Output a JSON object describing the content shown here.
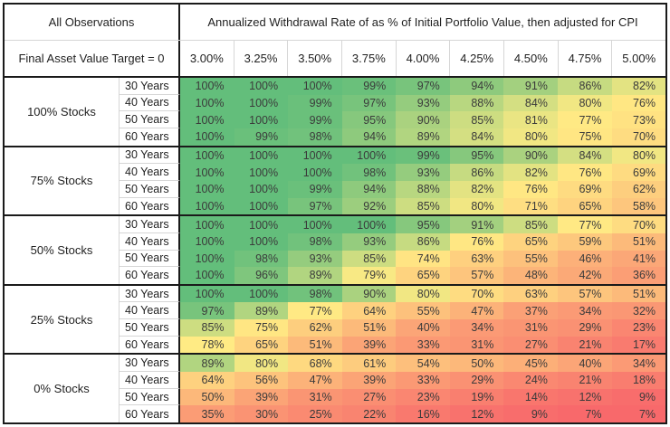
{
  "header": {
    "left_title": "All Observations",
    "left_subtitle": "Final Asset Value Target = 0"
  },
  "chart_data": {
    "type": "heatmap",
    "title": "Annualized Withdrawal Rate of as % of Initial Portfolio Value, then adjusted for CPI",
    "value_unit": "%",
    "columns": [
      "3.00%",
      "3.25%",
      "3.50%",
      "3.75%",
      "4.00%",
      "4.25%",
      "4.50%",
      "4.75%",
      "5.00%"
    ],
    "groups": [
      {
        "label": "100% Stocks",
        "rows": [
          {
            "label": "30 Years",
            "values": [
              100,
              100,
              100,
              99,
              97,
              94,
              91,
              86,
              82
            ]
          },
          {
            "label": "40 Years",
            "values": [
              100,
              100,
              99,
              97,
              93,
              88,
              84,
              80,
              76
            ]
          },
          {
            "label": "50 Years",
            "values": [
              100,
              100,
              99,
              95,
              90,
              85,
              81,
              77,
              73
            ]
          },
          {
            "label": "60 Years",
            "values": [
              100,
              99,
              98,
              94,
              89,
              84,
              80,
              75,
              70
            ]
          }
        ]
      },
      {
        "label": "75% Stocks",
        "rows": [
          {
            "label": "30 Years",
            "values": [
              100,
              100,
              100,
              100,
              99,
              95,
              90,
              84,
              80
            ]
          },
          {
            "label": "40 Years",
            "values": [
              100,
              100,
              100,
              98,
              93,
              86,
              82,
              76,
              69
            ]
          },
          {
            "label": "50 Years",
            "values": [
              100,
              100,
              99,
              94,
              88,
              82,
              76,
              69,
              62
            ]
          },
          {
            "label": "60 Years",
            "values": [
              100,
              100,
              97,
              92,
              85,
              80,
              71,
              65,
              58
            ]
          }
        ]
      },
      {
        "label": "50% Stocks",
        "rows": [
          {
            "label": "30 Years",
            "values": [
              100,
              100,
              100,
              100,
              95,
              91,
              85,
              77,
              70
            ]
          },
          {
            "label": "40 Years",
            "values": [
              100,
              100,
              98,
              93,
              86,
              76,
              65,
              59,
              51
            ]
          },
          {
            "label": "50 Years",
            "values": [
              100,
              98,
              93,
              85,
              74,
              63,
              55,
              46,
              41
            ]
          },
          {
            "label": "60 Years",
            "values": [
              100,
              96,
              89,
              79,
              65,
              57,
              48,
              42,
              36
            ]
          }
        ]
      },
      {
        "label": "25% Stocks",
        "rows": [
          {
            "label": "30 Years",
            "values": [
              100,
              100,
              98,
              90,
              80,
              70,
              63,
              57,
              51
            ]
          },
          {
            "label": "40 Years",
            "values": [
              97,
              89,
              77,
              64,
              55,
              47,
              37,
              34,
              32
            ]
          },
          {
            "label": "50 Years",
            "values": [
              85,
              75,
              62,
              51,
              40,
              34,
              31,
              29,
              23
            ]
          },
          {
            "label": "60 Years",
            "values": [
              78,
              65,
              51,
              39,
              33,
              31,
              27,
              21,
              17
            ]
          }
        ]
      },
      {
        "label": "0% Stocks",
        "rows": [
          {
            "label": "30 Years",
            "values": [
              89,
              80,
              68,
              61,
              54,
              50,
              45,
              40,
              34
            ]
          },
          {
            "label": "40 Years",
            "values": [
              64,
              56,
              47,
              39,
              33,
              29,
              24,
              21,
              18
            ]
          },
          {
            "label": "50 Years",
            "values": [
              50,
              39,
              31,
              27,
              23,
              19,
              14,
              12,
              9
            ]
          },
          {
            "label": "60 Years",
            "values": [
              35,
              30,
              25,
              22,
              16,
              12,
              9,
              7,
              7
            ]
          }
        ]
      }
    ],
    "color_scale": {
      "min_value": 7,
      "mid_value": 78,
      "max_value": 100,
      "min_color": "#F8696B",
      "mid_color": "#FFEB84",
      "max_color": "#63BE7B"
    },
    "legend_position": "none",
    "grid": false
  }
}
